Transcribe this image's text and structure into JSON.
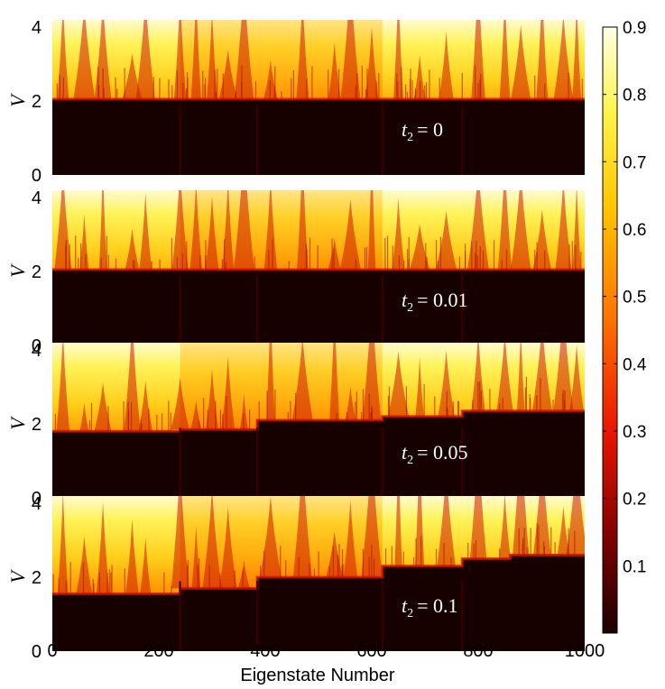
{
  "chart_data": {
    "type": "heatmap",
    "xlabel": "Eigenstate Number",
    "ylabel": "V",
    "xlim": [
      0,
      1000
    ],
    "ylim": [
      0,
      4.2
    ],
    "x_ticks": [
      0,
      200,
      400,
      600,
      800,
      1000
    ],
    "y_ticks": [
      0,
      2,
      4
    ],
    "colormap": "hot",
    "colorbar": {
      "range": [
        0,
        0.9
      ],
      "ticks": [
        0.1,
        0.2,
        0.3,
        0.4,
        0.5,
        0.6,
        0.7,
        0.8,
        0.9
      ],
      "placement": "right"
    },
    "panels": [
      {
        "label_var": "t",
        "label_sub": "2",
        "label_value": "= 0",
        "thresholds": [
          {
            "x0": 0,
            "x1": 385,
            "v": 2.05
          },
          {
            "x0": 385,
            "x1": 620,
            "v": 2.05
          },
          {
            "x0": 620,
            "x1": 1000,
            "v": 2.05
          }
        ]
      },
      {
        "label_var": "t",
        "label_sub": "2",
        "label_value": "= 0.01",
        "thresholds": [
          {
            "x0": 0,
            "x1": 385,
            "v": 2.05
          },
          {
            "x0": 385,
            "x1": 620,
            "v": 2.05
          },
          {
            "x0": 620,
            "x1": 1000,
            "v": 2.05
          }
        ]
      },
      {
        "label_var": "t",
        "label_sub": "2",
        "label_value": "= 0.05",
        "thresholds": [
          {
            "x0": 0,
            "x1": 240,
            "v": 1.8
          },
          {
            "x0": 240,
            "x1": 385,
            "v": 1.85
          },
          {
            "x0": 385,
            "x1": 620,
            "v": 2.1
          },
          {
            "x0": 620,
            "x1": 770,
            "v": 2.2
          },
          {
            "x0": 770,
            "x1": 1000,
            "v": 2.35
          }
        ]
      },
      {
        "label_var": "t",
        "label_sub": "2",
        "label_value": "= 0.1",
        "thresholds": [
          {
            "x0": 0,
            "x1": 240,
            "v": 1.55
          },
          {
            "x0": 240,
            "x1": 385,
            "v": 1.7
          },
          {
            "x0": 385,
            "x1": 620,
            "v": 2.0
          },
          {
            "x0": 620,
            "x1": 770,
            "v": 2.3
          },
          {
            "x0": 770,
            "x1": 860,
            "v": 2.5
          },
          {
            "x0": 860,
            "x1": 1000,
            "v": 2.6
          }
        ]
      }
    ]
  }
}
